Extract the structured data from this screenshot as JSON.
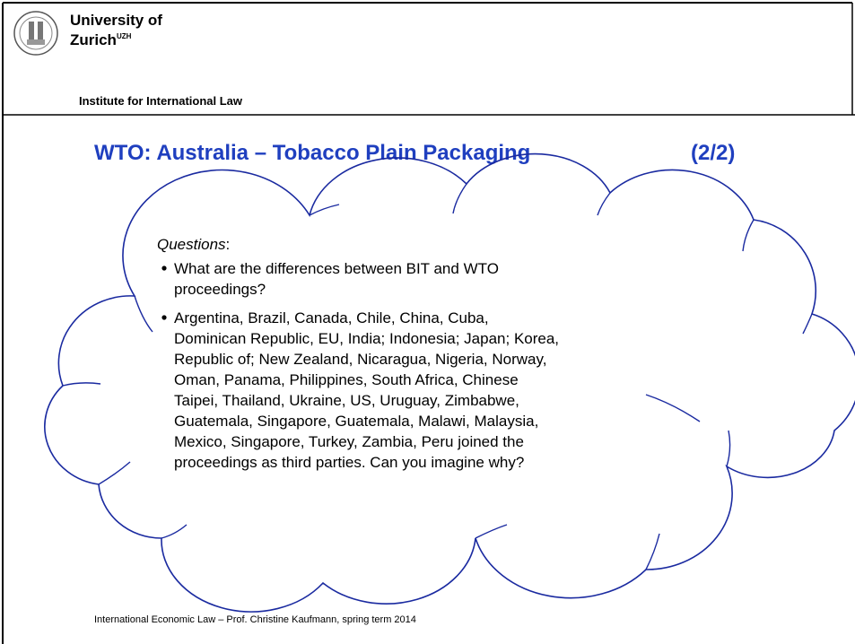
{
  "header": {
    "university_line1": "University of",
    "university_line2": "Zurich",
    "university_superscript": "UZH",
    "institute": "Institute for International Law"
  },
  "slide": {
    "title": "WTO: Australia – Tobacco Plain Packaging",
    "page": "(2/2)",
    "questions_label": "Questions",
    "questions_colon": ":",
    "bullets": [
      [
        "What are the differences between BIT and WTO",
        "proceedings?"
      ],
      [
        "Argentina, Brazil, Canada, Chile, China, Cuba,",
        "Dominican Republic, EU, India; Indonesia; Japan; Korea,",
        "Republic of; New Zealand, Nicaragua, Nigeria, Norway,",
        "Oman, Panama, Philippines, South Africa, Chinese",
        "Taipei, Thailand, Ukraine, US, Uruguay, Zimbabwe,",
        "Guatemala, Singapore, Guatemala, Malawi, Malaysia,",
        "Mexico, Singapore, Turkey, Zambia, Peru joined the",
        "proceedings as third parties. Can you imagine why?"
      ]
    ]
  },
  "footer": "International Economic Law – Prof. Christine Kaufmann, spring term 2014"
}
